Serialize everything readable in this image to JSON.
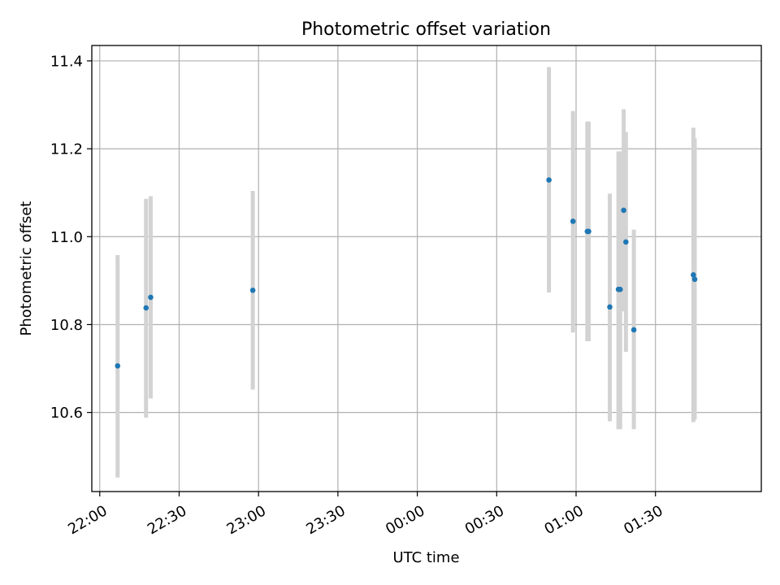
{
  "chart_data": {
    "type": "scatter",
    "title": "Photometric offset variation",
    "xlabel": "UTC time",
    "ylabel": "Photometric offset",
    "grid": true,
    "colors": {
      "points": "#1f77b4",
      "errorbars": "#d3d3d3",
      "grid": "#b0b0b0"
    },
    "x_ticks": [
      "22:00",
      "22:30",
      "23:00",
      "23:30",
      "00:00",
      "00:30",
      "01:00",
      "01:30"
    ],
    "y_ticks": [
      "10.6",
      "10.8",
      "11.0",
      "11.2",
      "11.4"
    ],
    "xlim": [
      "21:57",
      "02:10"
    ],
    "ylim": [
      10.42,
      11.435
    ],
    "series": [
      {
        "points": [
          {
            "x": "22:06:45",
            "y": 10.706,
            "err_low": 10.452,
            "err_high": 10.958
          },
          {
            "x": "22:17:30",
            "y": 10.838,
            "err_low": 10.588,
            "err_high": 11.086
          },
          {
            "x": "22:19:15",
            "y": 10.862,
            "err_low": 10.632,
            "err_high": 11.092
          },
          {
            "x": "22:57:50",
            "y": 10.878,
            "err_low": 10.652,
            "err_high": 11.104
          },
          {
            "x": "00:49:45",
            "y": 11.129,
            "err_low": 10.873,
            "err_high": 11.386
          },
          {
            "x": "00:58:50",
            "y": 11.035,
            "err_low": 10.782,
            "err_high": 11.286
          },
          {
            "x": "01:04:15",
            "y": 11.012,
            "err_low": 10.762,
            "err_high": 11.262
          },
          {
            "x": "01:04:45",
            "y": 11.012,
            "err_low": 10.762,
            "err_high": 11.262
          },
          {
            "x": "01:12:45",
            "y": 10.84,
            "err_low": 10.58,
            "err_high": 11.098
          },
          {
            "x": "01:16:00",
            "y": 10.88,
            "err_low": 10.562,
            "err_high": 11.194
          },
          {
            "x": "01:16:40",
            "y": 10.88,
            "err_low": 10.562,
            "err_high": 11.194
          },
          {
            "x": "01:18:00",
            "y": 11.06,
            "err_low": 10.83,
            "err_high": 11.29
          },
          {
            "x": "01:18:50",
            "y": 10.988,
            "err_low": 10.738,
            "err_high": 11.238
          },
          {
            "x": "01:21:50",
            "y": 10.788,
            "err_low": 10.562,
            "err_high": 11.016
          },
          {
            "x": "01:44:20",
            "y": 10.913,
            "err_low": 10.578,
            "err_high": 11.248
          },
          {
            "x": "01:44:50",
            "y": 10.903,
            "err_low": 10.584,
            "err_high": 11.224
          }
        ]
      }
    ]
  }
}
